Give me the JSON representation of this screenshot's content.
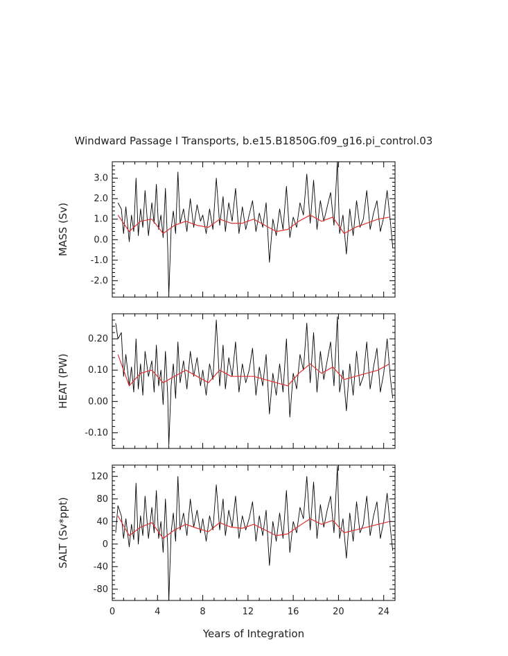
{
  "chart_data": [
    {
      "type": "line",
      "title": "Windward Passage I Transports, b.e15.B1850G.f09_g16.pi_control.03",
      "ylabel": "MASS (Sv)",
      "xlabel": "",
      "xlim": [
        0,
        25
      ],
      "ylim": [
        -2.8,
        3.8
      ],
      "yticks": [
        -2.0,
        -1.0,
        0.0,
        1.0,
        2.0,
        3.0
      ],
      "ytick_labels": [
        "-2.0",
        "-1.0",
        "0.0",
        "1.0",
        "2.0",
        "3.0"
      ],
      "grid": false,
      "series": [
        {
          "color": "#000000",
          "x": [
            0.5,
            0.8,
            1.0,
            1.2,
            1.5,
            1.7,
            1.9,
            2.1,
            2.3,
            2.5,
            2.7,
            2.9,
            3.2,
            3.5,
            3.7,
            3.9,
            4.1,
            4.3,
            4.5,
            4.7,
            4.9,
            5.0,
            5.2,
            5.4,
            5.6,
            5.8,
            6.0,
            6.3,
            6.6,
            6.9,
            7.2,
            7.5,
            7.8,
            8.0,
            8.3,
            8.6,
            8.9,
            9.2,
            9.5,
            9.8,
            10.0,
            10.3,
            10.6,
            10.9,
            11.2,
            11.5,
            11.8,
            12.1,
            12.4,
            12.7,
            13.0,
            13.3,
            13.6,
            13.9,
            14.2,
            14.5,
            14.8,
            15.1,
            15.4,
            15.7,
            16.0,
            16.3,
            16.6,
            16.9,
            17.2,
            17.5,
            17.8,
            18.1,
            18.4,
            18.7,
            19.0,
            19.3,
            19.6,
            19.9,
            20.1,
            20.4,
            20.7,
            21.0,
            21.3,
            21.6,
            21.9,
            22.2,
            22.5,
            22.8,
            23.1,
            23.4,
            23.7,
            24.0,
            24.3,
            24.6,
            24.8
          ],
          "values": [
            1.8,
            1.5,
            0.3,
            1.6,
            -0.1,
            1.2,
            0.4,
            3.0,
            0.2,
            1.5,
            0.6,
            2.4,
            0.2,
            1.8,
            0.8,
            2.7,
            0.5,
            1.2,
            0.1,
            2.5,
            -0.4,
            -2.7,
            0.5,
            1.4,
            0.3,
            3.3,
            0.8,
            1.5,
            0.4,
            2.0,
            0.6,
            1.7,
            0.9,
            1.2,
            0.3,
            1.5,
            0.5,
            3.0,
            0.7,
            2.1,
            0.4,
            1.8,
            0.9,
            2.5,
            0.3,
            1.6,
            0.5,
            1.2,
            1.9,
            0.4,
            1.3,
            0.6,
            1.8,
            -1.1,
            1.0,
            0.2,
            1.5,
            0.5,
            2.6,
            0.1,
            1.1,
            0.6,
            1.8,
            1.2,
            3.2,
            0.8,
            2.9,
            0.5,
            1.9,
            0.9,
            1.6,
            2.3,
            0.7,
            3.8,
            0.3,
            1.2,
            -0.7,
            1.5,
            0.2,
            1.9,
            0.6,
            1.0,
            2.4,
            0.5,
            1.3,
            1.9,
            0.4,
            1.1,
            2.4,
            0.8,
            -0.4
          ]
        },
        {
          "color": "#e03030",
          "x": [
            0.5,
            1.5,
            2.5,
            3.5,
            4.5,
            5.5,
            6.5,
            7.5,
            8.5,
            9.5,
            10.5,
            11.5,
            12.5,
            13.5,
            14.5,
            15.5,
            16.5,
            17.5,
            18.5,
            19.5,
            20.5,
            21.5,
            22.5,
            23.5,
            24.5
          ],
          "values": [
            1.2,
            0.4,
            0.9,
            1.0,
            0.3,
            0.7,
            0.9,
            0.7,
            0.6,
            1.0,
            0.8,
            0.8,
            1.0,
            0.7,
            0.4,
            0.5,
            0.9,
            1.2,
            0.9,
            1.1,
            0.3,
            0.6,
            0.8,
            1.0,
            1.1
          ]
        }
      ]
    },
    {
      "type": "line",
      "ylabel": "HEAT (PW)",
      "xlabel": "",
      "xlim": [
        0,
        25
      ],
      "ylim": [
        -0.15,
        0.28
      ],
      "yticks": [
        -0.1,
        0.0,
        0.1,
        0.2
      ],
      "ytick_labels": [
        "-0.10",
        "0.00",
        "0.10",
        "0.20"
      ],
      "grid": false,
      "series": [
        {
          "color": "#000000",
          "x": [
            0.3,
            0.5,
            0.8,
            1.0,
            1.2,
            1.5,
            1.7,
            1.9,
            2.1,
            2.3,
            2.5,
            2.7,
            2.9,
            3.2,
            3.5,
            3.7,
            3.9,
            4.1,
            4.3,
            4.5,
            4.7,
            4.9,
            5.0,
            5.2,
            5.4,
            5.6,
            5.8,
            6.0,
            6.3,
            6.6,
            6.9,
            7.2,
            7.5,
            7.8,
            8.0,
            8.3,
            8.6,
            8.9,
            9.2,
            9.5,
            9.8,
            10.0,
            10.3,
            10.6,
            10.9,
            11.2,
            11.5,
            11.8,
            12.1,
            12.4,
            12.7,
            13.0,
            13.3,
            13.6,
            13.9,
            14.2,
            14.5,
            14.8,
            15.1,
            15.4,
            15.7,
            16.0,
            16.3,
            16.6,
            16.9,
            17.2,
            17.5,
            17.8,
            18.1,
            18.4,
            18.7,
            19.0,
            19.3,
            19.6,
            19.9,
            20.1,
            20.4,
            20.7,
            21.0,
            21.3,
            21.6,
            21.9,
            22.2,
            22.5,
            22.8,
            23.1,
            23.4,
            23.7,
            24.0,
            24.3,
            24.6,
            24.8
          ],
          "values": [
            0.25,
            0.2,
            0.22,
            0.08,
            0.15,
            0.05,
            0.11,
            0.03,
            0.2,
            0.04,
            0.12,
            0.02,
            0.16,
            0.08,
            0.13,
            0.03,
            0.18,
            0.05,
            0.1,
            -0.01,
            0.16,
            0.02,
            -0.14,
            0.05,
            0.12,
            0.01,
            0.19,
            0.06,
            0.13,
            0.04,
            0.16,
            0.08,
            0.14,
            0.05,
            0.1,
            0.02,
            0.12,
            0.07,
            0.26,
            0.05,
            0.18,
            0.04,
            0.14,
            0.08,
            0.19,
            0.03,
            0.12,
            0.06,
            0.1,
            0.17,
            0.02,
            0.11,
            0.05,
            0.15,
            -0.04,
            0.09,
            0.02,
            0.12,
            0.03,
            0.2,
            -0.05,
            0.09,
            0.04,
            0.15,
            0.1,
            0.25,
            0.06,
            0.22,
            0.03,
            0.16,
            0.07,
            0.13,
            0.19,
            0.05,
            0.27,
            0.03,
            0.1,
            -0.03,
            0.12,
            0.02,
            0.16,
            0.05,
            0.08,
            0.19,
            0.04,
            0.11,
            0.17,
            0.03,
            0.09,
            0.2,
            0.07,
            0.01
          ]
        },
        {
          "color": "#e03030",
          "x": [
            0.5,
            1.5,
            2.5,
            3.5,
            4.5,
            5.5,
            6.5,
            7.5,
            8.5,
            9.5,
            10.5,
            11.5,
            12.5,
            13.5,
            14.5,
            15.5,
            16.5,
            17.5,
            18.5,
            19.5,
            20.5,
            21.5,
            22.5,
            23.5,
            24.5
          ],
          "values": [
            0.15,
            0.05,
            0.09,
            0.1,
            0.06,
            0.08,
            0.1,
            0.08,
            0.06,
            0.1,
            0.08,
            0.08,
            0.08,
            0.07,
            0.06,
            0.05,
            0.09,
            0.12,
            0.09,
            0.11,
            0.07,
            0.08,
            0.09,
            0.1,
            0.12
          ]
        }
      ]
    },
    {
      "type": "line",
      "ylabel": "SALT (Sv*ppt)",
      "xlabel": "Years of Integration",
      "xlim": [
        0,
        25
      ],
      "ylim": [
        -100,
        140
      ],
      "xticks": [
        0,
        4,
        8,
        12,
        16,
        20,
        24
      ],
      "xtick_labels": [
        "0",
        "4",
        "8",
        "12",
        "16",
        "20",
        "24"
      ],
      "yticks": [
        -80,
        -40,
        0,
        40,
        80,
        120
      ],
      "ytick_labels": [
        "-80",
        "-40",
        "0",
        "40",
        "80",
        "120"
      ],
      "grid": false,
      "series": [
        {
          "color": "#000000",
          "x": [
            0.3,
            0.5,
            0.8,
            1.0,
            1.2,
            1.5,
            1.7,
            1.9,
            2.1,
            2.3,
            2.5,
            2.7,
            2.9,
            3.2,
            3.5,
            3.7,
            3.9,
            4.1,
            4.3,
            4.5,
            4.7,
            4.9,
            5.0,
            5.2,
            5.4,
            5.6,
            5.8,
            6.0,
            6.3,
            6.6,
            6.9,
            7.2,
            7.5,
            7.8,
            8.0,
            8.3,
            8.6,
            8.9,
            9.2,
            9.5,
            9.8,
            10.0,
            10.3,
            10.6,
            10.9,
            11.2,
            11.5,
            11.8,
            12.1,
            12.4,
            12.7,
            13.0,
            13.3,
            13.6,
            13.9,
            14.2,
            14.5,
            14.8,
            15.1,
            15.4,
            15.7,
            16.0,
            16.3,
            16.6,
            16.9,
            17.2,
            17.5,
            17.8,
            18.1,
            18.4,
            18.7,
            19.0,
            19.3,
            19.6,
            19.9,
            20.1,
            20.4,
            20.7,
            21.0,
            21.3,
            21.6,
            21.9,
            22.2,
            22.5,
            22.8,
            23.1,
            23.4,
            23.7,
            24.0,
            24.3,
            24.6,
            24.8
          ],
          "values": [
            20,
            68,
            50,
            10,
            45,
            -5,
            35,
            8,
            108,
            0,
            50,
            15,
            85,
            10,
            65,
            20,
            95,
            10,
            40,
            -15,
            80,
            -5,
            -100,
            20,
            55,
            5,
            120,
            25,
            55,
            15,
            80,
            30,
            60,
            20,
            45,
            5,
            50,
            25,
            105,
            25,
            80,
            15,
            60,
            30,
            85,
            10,
            50,
            25,
            45,
            75,
            5,
            50,
            15,
            60,
            -38,
            40,
            5,
            55,
            10,
            95,
            -15,
            40,
            20,
            65,
            45,
            120,
            25,
            110,
            10,
            70,
            30,
            60,
            85,
            20,
            138,
            10,
            45,
            -25,
            55,
            5,
            75,
            20,
            35,
            85,
            15,
            50,
            75,
            10,
            40,
            90,
            25,
            -12
          ]
        },
        {
          "color": "#e03030",
          "x": [
            0.5,
            1.5,
            2.5,
            3.5,
            4.5,
            5.5,
            6.5,
            7.5,
            8.5,
            9.5,
            10.5,
            11.5,
            12.5,
            13.5,
            14.5,
            15.5,
            16.5,
            17.5,
            18.5,
            19.5,
            20.5,
            21.5,
            22.5,
            23.5,
            24.5
          ],
          "values": [
            50,
            15,
            30,
            38,
            10,
            25,
            35,
            28,
            22,
            38,
            30,
            28,
            35,
            25,
            15,
            18,
            32,
            45,
            35,
            42,
            20,
            25,
            30,
            35,
            40
          ]
        }
      ]
    }
  ]
}
